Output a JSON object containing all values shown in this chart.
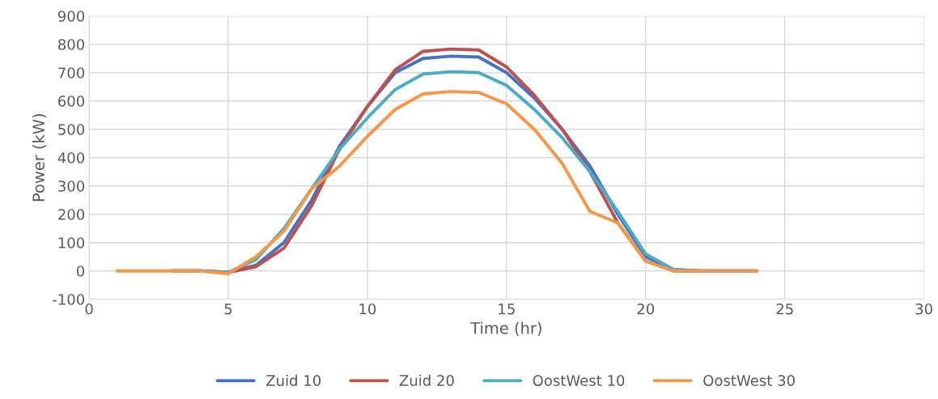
{
  "chart_data": {
    "type": "line",
    "xlabel": "Time (hr)",
    "ylabel": "Power (kW)",
    "x": [
      1,
      2,
      3,
      4,
      5,
      6,
      7,
      8,
      9,
      10,
      11,
      12,
      13,
      14,
      15,
      16,
      17,
      18,
      19,
      20,
      21,
      22,
      23,
      24
    ],
    "series": [
      {
        "name": "Zuid 10",
        "color": "#4472c4",
        "values": [
          null,
          null,
          0,
          0,
          -5,
          20,
          100,
          250,
          440,
          580,
          700,
          750,
          758,
          755,
          700,
          610,
          500,
          370,
          200,
          50,
          5,
          0,
          0,
          0
        ]
      },
      {
        "name": "Zuid 20",
        "color": "#c0504d",
        "values": [
          null,
          null,
          0,
          0,
          -5,
          15,
          80,
          230,
          430,
          580,
          710,
          775,
          783,
          780,
          720,
          620,
          500,
          350,
          170,
          35,
          0,
          0,
          null,
          null
        ]
      },
      {
        "name": "OostWest 10",
        "color": "#4bacc6",
        "values": [
          null,
          null,
          0,
          0,
          -5,
          40,
          150,
          290,
          430,
          540,
          640,
          695,
          703,
          700,
          655,
          570,
          470,
          350,
          210,
          60,
          5,
          0,
          0,
          0
        ]
      },
      {
        "name": "OostWest 30",
        "color": "#f79646",
        "values": [
          0,
          0,
          0,
          0,
          -10,
          50,
          140,
          290,
          370,
          475,
          570,
          625,
          633,
          630,
          590,
          500,
          380,
          210,
          170,
          35,
          0,
          0,
          0,
          0
        ]
      }
    ],
    "xlim": [
      0,
      30
    ],
    "xticks": [
      0,
      5,
      10,
      15,
      20,
      25,
      30
    ],
    "ylim": [
      -100,
      900
    ],
    "yticks": [
      -100,
      0,
      100,
      200,
      300,
      400,
      500,
      600,
      700,
      800,
      900
    ],
    "grid": true,
    "legend": "bottom",
    "marker": "none",
    "line_style": "solid"
  }
}
